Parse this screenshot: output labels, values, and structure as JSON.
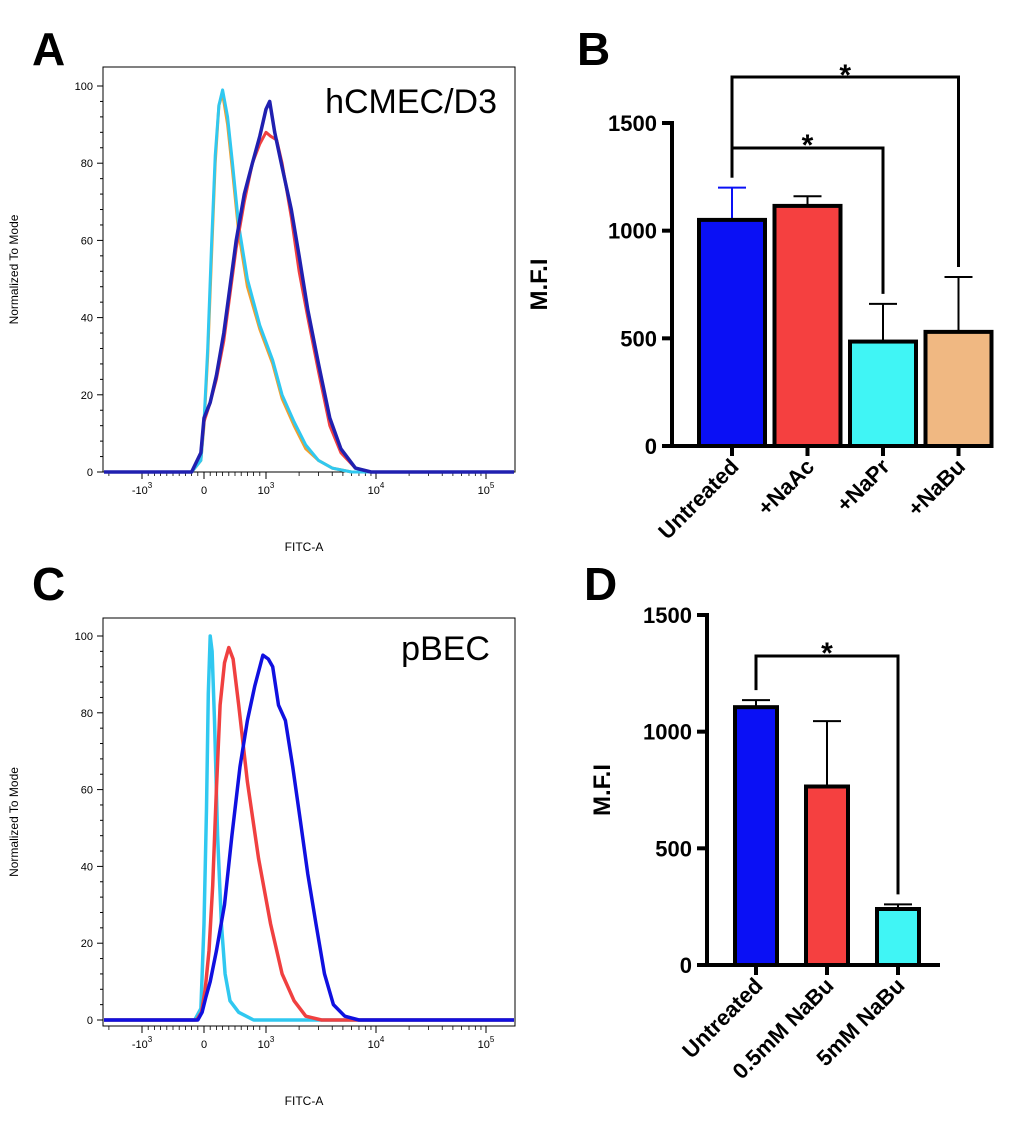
{
  "panels": {
    "A": {
      "letter": "A",
      "cell_line": "hCMEC/D3"
    },
    "B": {
      "letter": "B"
    },
    "C": {
      "letter": "C",
      "cell_line": "pBEC"
    },
    "D": {
      "letter": "D"
    }
  },
  "chart_data": [
    {
      "panel": "A",
      "type": "line",
      "ylabel": "Normalized To Mode",
      "xlabel": "FITC-A",
      "y_ticks": [
        "0",
        "20",
        "40",
        "60",
        "80",
        "100"
      ],
      "ylim": [
        0,
        100
      ],
      "x_ticks": [
        {
          "base": "-10",
          "exp": "3",
          "value": -1000
        },
        {
          "base": "0",
          "exp": "",
          "value": 0
        },
        {
          "base": "10",
          "exp": "3",
          "value": 1000
        },
        {
          "base": "10",
          "exp": "4",
          "value": 10000
        },
        {
          "base": "10",
          "exp": "5",
          "value": 100000
        }
      ],
      "x_scale": "biexponential",
      "series": [
        {
          "color": "#f0a030",
          "width": 3,
          "points": [
            [
              -3000,
              0
            ],
            [
              -200,
              0
            ],
            [
              -50,
              3
            ],
            [
              0,
              12
            ],
            [
              60,
              30
            ],
            [
              120,
              55
            ],
            [
              180,
              80
            ],
            [
              240,
              95
            ],
            [
              300,
              98
            ],
            [
              380,
              90
            ],
            [
              460,
              78
            ],
            [
              560,
              62
            ],
            [
              700,
              48
            ],
            [
              900,
              37
            ],
            [
              1150,
              28
            ],
            [
              1400,
              19
            ],
            [
              1800,
              12
            ],
            [
              2300,
              6
            ],
            [
              3000,
              3
            ],
            [
              4000,
              1
            ],
            [
              6000,
              0
            ],
            [
              200000,
              0
            ]
          ]
        },
        {
          "color": "#30c8f0",
          "width": 3,
          "points": [
            [
              -3000,
              0
            ],
            [
              -200,
              0
            ],
            [
              -50,
              3
            ],
            [
              0,
              13
            ],
            [
              60,
              32
            ],
            [
              120,
              58
            ],
            [
              180,
              82
            ],
            [
              240,
              95
            ],
            [
              300,
              99
            ],
            [
              380,
              92
            ],
            [
              460,
              80
            ],
            [
              560,
              64
            ],
            [
              700,
              50
            ],
            [
              900,
              38
            ],
            [
              1150,
              29
            ],
            [
              1400,
              20
            ],
            [
              1800,
              13
            ],
            [
              2300,
              7
            ],
            [
              3000,
              3
            ],
            [
              4000,
              1
            ],
            [
              6000,
              0
            ],
            [
              200000,
              0
            ]
          ]
        },
        {
          "color": "#f04040",
          "width": 3,
          "points": [
            [
              -3000,
              0
            ],
            [
              -200,
              0
            ],
            [
              -50,
              5
            ],
            [
              0,
              13
            ],
            [
              100,
              18
            ],
            [
              200,
              24
            ],
            [
              320,
              34
            ],
            [
              420,
              46
            ],
            [
              520,
              58
            ],
            [
              650,
              70
            ],
            [
              780,
              80
            ],
            [
              900,
              85
            ],
            [
              1000,
              88
            ],
            [
              1100,
              87
            ],
            [
              1250,
              86
            ],
            [
              1400,
              80
            ],
            [
              1700,
              66
            ],
            [
              2000,
              52
            ],
            [
              2400,
              40
            ],
            [
              3000,
              26
            ],
            [
              3800,
              12
            ],
            [
              4800,
              5
            ],
            [
              6500,
              1
            ],
            [
              9000,
              0
            ],
            [
              200000,
              0
            ]
          ]
        },
        {
          "color": "#2020b0",
          "width": 3.5,
          "points": [
            [
              -3000,
              0
            ],
            [
              -200,
              0
            ],
            [
              -50,
              5
            ],
            [
              0,
              14
            ],
            [
              100,
              18
            ],
            [
              200,
              25
            ],
            [
              320,
              36
            ],
            [
              420,
              48
            ],
            [
              520,
              60
            ],
            [
              650,
              72
            ],
            [
              780,
              80
            ],
            [
              900,
              87
            ],
            [
              1000,
              94
            ],
            [
              1080,
              96
            ],
            [
              1200,
              88
            ],
            [
              1400,
              79
            ],
            [
              1700,
              68
            ],
            [
              2000,
              56
            ],
            [
              2400,
              42
            ],
            [
              3000,
              28
            ],
            [
              3800,
              14
            ],
            [
              4800,
              6
            ],
            [
              6500,
              1
            ],
            [
              9000,
              0
            ],
            [
              200000,
              0
            ]
          ]
        }
      ]
    },
    {
      "panel": "B",
      "type": "bar",
      "ylabel": "M.F.I",
      "categories": [
        "Untreated",
        "+NaAc",
        "+NaPr",
        "+NaBu"
      ],
      "values": [
        1050,
        1115,
        485,
        530
      ],
      "errors": [
        150,
        45,
        175,
        255
      ],
      "colors": [
        "#0a10f5",
        "#f54040",
        "#40f5f5",
        "#f0b882"
      ],
      "error_colors": [
        "#0a10f5",
        "#000000",
        "#000000",
        "#000000"
      ],
      "ylim": [
        0,
        1500
      ],
      "y_ticks": [
        0,
        500,
        1000,
        1500
      ],
      "significance": [
        {
          "from": 0,
          "to": 2,
          "label": "*"
        },
        {
          "from": 0,
          "to": 3,
          "label": "*"
        }
      ]
    },
    {
      "panel": "C",
      "type": "line",
      "ylabel": "Normalized To Mode",
      "xlabel": "FITC-A",
      "y_ticks": [
        "0",
        "20",
        "40",
        "60",
        "80",
        "100"
      ],
      "ylim": [
        0,
        100
      ],
      "x_ticks": [
        {
          "base": "-10",
          "exp": "3",
          "value": -1000
        },
        {
          "base": "0",
          "exp": "",
          "value": 0
        },
        {
          "base": "10",
          "exp": "3",
          "value": 1000
        },
        {
          "base": "10",
          "exp": "4",
          "value": 10000
        },
        {
          "base": "10",
          "exp": "5",
          "value": 100000
        }
      ],
      "x_scale": "biexponential",
      "series": [
        {
          "color": "#30c8f0",
          "width": 3.5,
          "points": [
            [
              -3000,
              0
            ],
            [
              -150,
              0
            ],
            [
              -50,
              3
            ],
            [
              0,
              25
            ],
            [
              40,
              55
            ],
            [
              70,
              85
            ],
            [
              100,
              100
            ],
            [
              130,
              96
            ],
            [
              170,
              78
            ],
            [
              220,
              48
            ],
            [
              280,
              25
            ],
            [
              340,
              12
            ],
            [
              420,
              5
            ],
            [
              560,
              2
            ],
            [
              800,
              0
            ],
            [
              200000,
              0
            ]
          ]
        },
        {
          "color": "#f04040",
          "width": 3.5,
          "points": [
            [
              -3000,
              0
            ],
            [
              -120,
              0
            ],
            [
              -40,
              2
            ],
            [
              20,
              8
            ],
            [
              80,
              18
            ],
            [
              140,
              35
            ],
            [
              200,
              60
            ],
            [
              260,
              82
            ],
            [
              330,
              93
            ],
            [
              400,
              97
            ],
            [
              470,
              94
            ],
            [
              560,
              82
            ],
            [
              700,
              62
            ],
            [
              880,
              42
            ],
            [
              1100,
              25
            ],
            [
              1400,
              12
            ],
            [
              1800,
              5
            ],
            [
              2300,
              1
            ],
            [
              3200,
              0
            ],
            [
              200000,
              0
            ]
          ]
        },
        {
          "color": "#1010e0",
          "width": 3.5,
          "points": [
            [
              -3000,
              0
            ],
            [
              -100,
              0
            ],
            [
              -30,
              2
            ],
            [
              30,
              6
            ],
            [
              100,
              10
            ],
            [
              200,
              18
            ],
            [
              330,
              30
            ],
            [
              450,
              48
            ],
            [
              580,
              66
            ],
            [
              700,
              78
            ],
            [
              820,
              87
            ],
            [
              950,
              95
            ],
            [
              1050,
              94
            ],
            [
              1150,
              92
            ],
            [
              1300,
              82
            ],
            [
              1500,
              78
            ],
            [
              1750,
              66
            ],
            [
              2050,
              52
            ],
            [
              2400,
              38
            ],
            [
              2850,
              25
            ],
            [
              3400,
              12
            ],
            [
              4100,
              4
            ],
            [
              5200,
              1
            ],
            [
              7000,
              0
            ],
            [
              200000,
              0
            ]
          ]
        }
      ]
    },
    {
      "panel": "D",
      "type": "bar",
      "ylabel": "M.F.I",
      "categories": [
        "Untreated",
        "0.5mM NaBu",
        "5mM NaBu"
      ],
      "values": [
        1105,
        765,
        240
      ],
      "errors": [
        30,
        280,
        20
      ],
      "colors": [
        "#0a10f5",
        "#f54040",
        "#40f5f5"
      ],
      "error_colors": [
        "#000000",
        "#000000",
        "#000000"
      ],
      "ylim": [
        0,
        1500
      ],
      "y_ticks": [
        0,
        500,
        1000,
        1500
      ],
      "significance": [
        {
          "from": 0,
          "to": 2,
          "label": "*"
        }
      ]
    }
  ]
}
